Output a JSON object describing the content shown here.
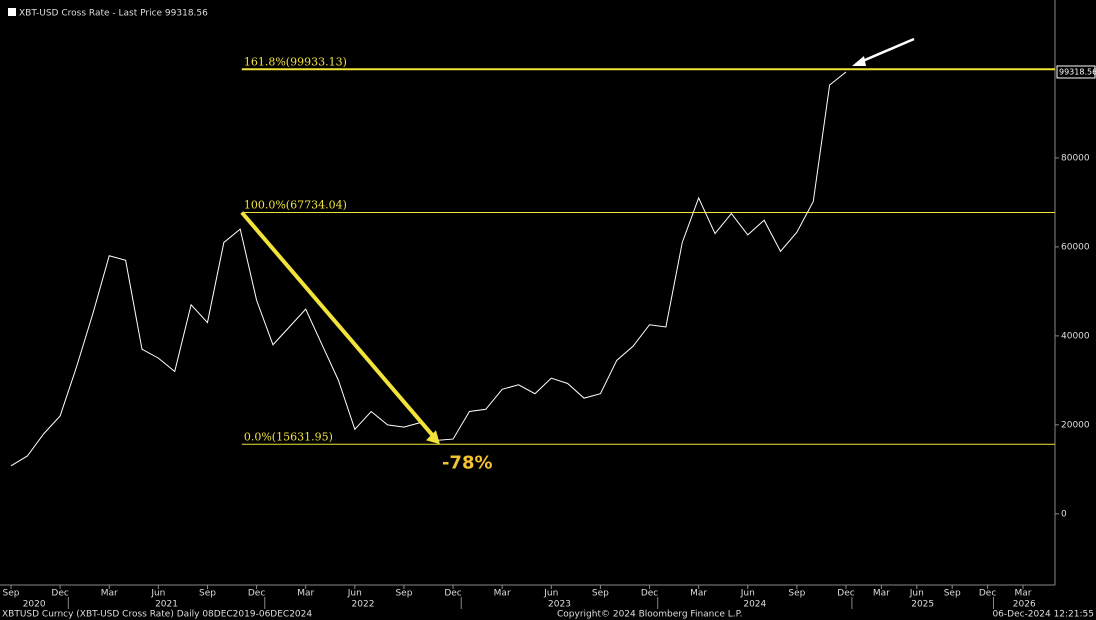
{
  "chart_data": {
    "type": "line",
    "title": "XBT-USD Cross Rate - Last Price 99318.56",
    "series": [
      {
        "name": "XBT-USD Cross Rate",
        "color": "#ffffff",
        "x": [
          "2020-09",
          "2020-10",
          "2020-11",
          "2020-12",
          "2021-01",
          "2021-02",
          "2021-03",
          "2021-04",
          "2021-05",
          "2021-06",
          "2021-07",
          "2021-08",
          "2021-09",
          "2021-10",
          "2021-11",
          "2021-12",
          "2022-01",
          "2022-02",
          "2022-03",
          "2022-04",
          "2022-05",
          "2022-06",
          "2022-07",
          "2022-08",
          "2022-09",
          "2022-10",
          "2022-11",
          "2022-12",
          "2023-01",
          "2023-02",
          "2023-03",
          "2023-04",
          "2023-05",
          "2023-06",
          "2023-07",
          "2023-08",
          "2023-09",
          "2023-10",
          "2023-11",
          "2023-12",
          "2024-01",
          "2024-02",
          "2024-03",
          "2024-04",
          "2024-05",
          "2024-06",
          "2024-07",
          "2024-08",
          "2024-09",
          "2024-10",
          "2024-11",
          "2024-12"
        ],
        "values": [
          10800,
          13000,
          18000,
          22000,
          33000,
          45000,
          58000,
          57000,
          37000,
          35000,
          32000,
          47000,
          43000,
          61000,
          64000,
          48000,
          38000,
          42000,
          46000,
          38000,
          30000,
          19000,
          23000,
          20000,
          19500,
          20500,
          16500,
          16800,
          23000,
          23500,
          28000,
          29000,
          27000,
          30500,
          29300,
          26000,
          27000,
          34500,
          37700,
          42500,
          42000,
          61000,
          71000,
          63000,
          67500,
          62700,
          66000,
          59000,
          63300,
          70200,
          96400,
          99318.56
        ]
      }
    ],
    "ylim": [
      -16000,
      115500
    ],
    "yticks": [
      0,
      20000,
      40000,
      60000,
      80000
    ],
    "last_price": 99318.56,
    "levels": [
      {
        "label": "161.8%(99933.13)",
        "value": 99933.13,
        "color": "#f2e33a"
      },
      {
        "label": "100.0%(67734.04)",
        "value": 67734.04,
        "color": "#f2e33a"
      },
      {
        "label": "0.0%(15631.95)",
        "value": 15631.95,
        "color": "#f2e33a"
      }
    ],
    "drawdown_label": "-78%",
    "xticks": [
      {
        "value": "2020-09",
        "label": "Sep"
      },
      {
        "value": "2020-12",
        "label": "Dec"
      },
      {
        "value": "2021-03",
        "label": "Mar"
      },
      {
        "value": "2021-06",
        "label": "Jun"
      },
      {
        "value": "2021-09",
        "label": "Sep"
      },
      {
        "value": "2021-12",
        "label": "Dec"
      },
      {
        "value": "2022-03",
        "label": "Mar"
      },
      {
        "value": "2022-06",
        "label": "Jun"
      },
      {
        "value": "2022-09",
        "label": "Sep"
      },
      {
        "value": "2022-12",
        "label": "Dec"
      },
      {
        "value": "2023-03",
        "label": "Mar"
      },
      {
        "value": "2023-06",
        "label": "Jun"
      },
      {
        "value": "2023-09",
        "label": "Sep"
      },
      {
        "value": "2023-12",
        "label": "Dec"
      },
      {
        "value": "2024-03",
        "label": "Mar"
      },
      {
        "value": "2024-06",
        "label": "Jun"
      },
      {
        "value": "2024-09",
        "label": "Sep"
      },
      {
        "value": "2024-12",
        "label": "Dec"
      },
      {
        "value": "2025-03",
        "label": "Mar"
      },
      {
        "value": "2025-06",
        "label": "Jun"
      },
      {
        "value": "2025-09",
        "label": "Sep"
      },
      {
        "value": "2025-12",
        "label": "Dec"
      },
      {
        "value": "2026-03",
        "label": "Mar"
      }
    ],
    "years": [
      "2020",
      "2021",
      "2022",
      "2023",
      "2024",
      "2025",
      "2026"
    ],
    "footer": {
      "left": "XBTUSD Curncy (XBT-USD Cross Rate)  Daily 08DEC2019-06DEC2024",
      "center": "Copyright© 2024 Bloomberg Finance L.P.",
      "right": "06-Dec-2024 12:21:55"
    }
  }
}
